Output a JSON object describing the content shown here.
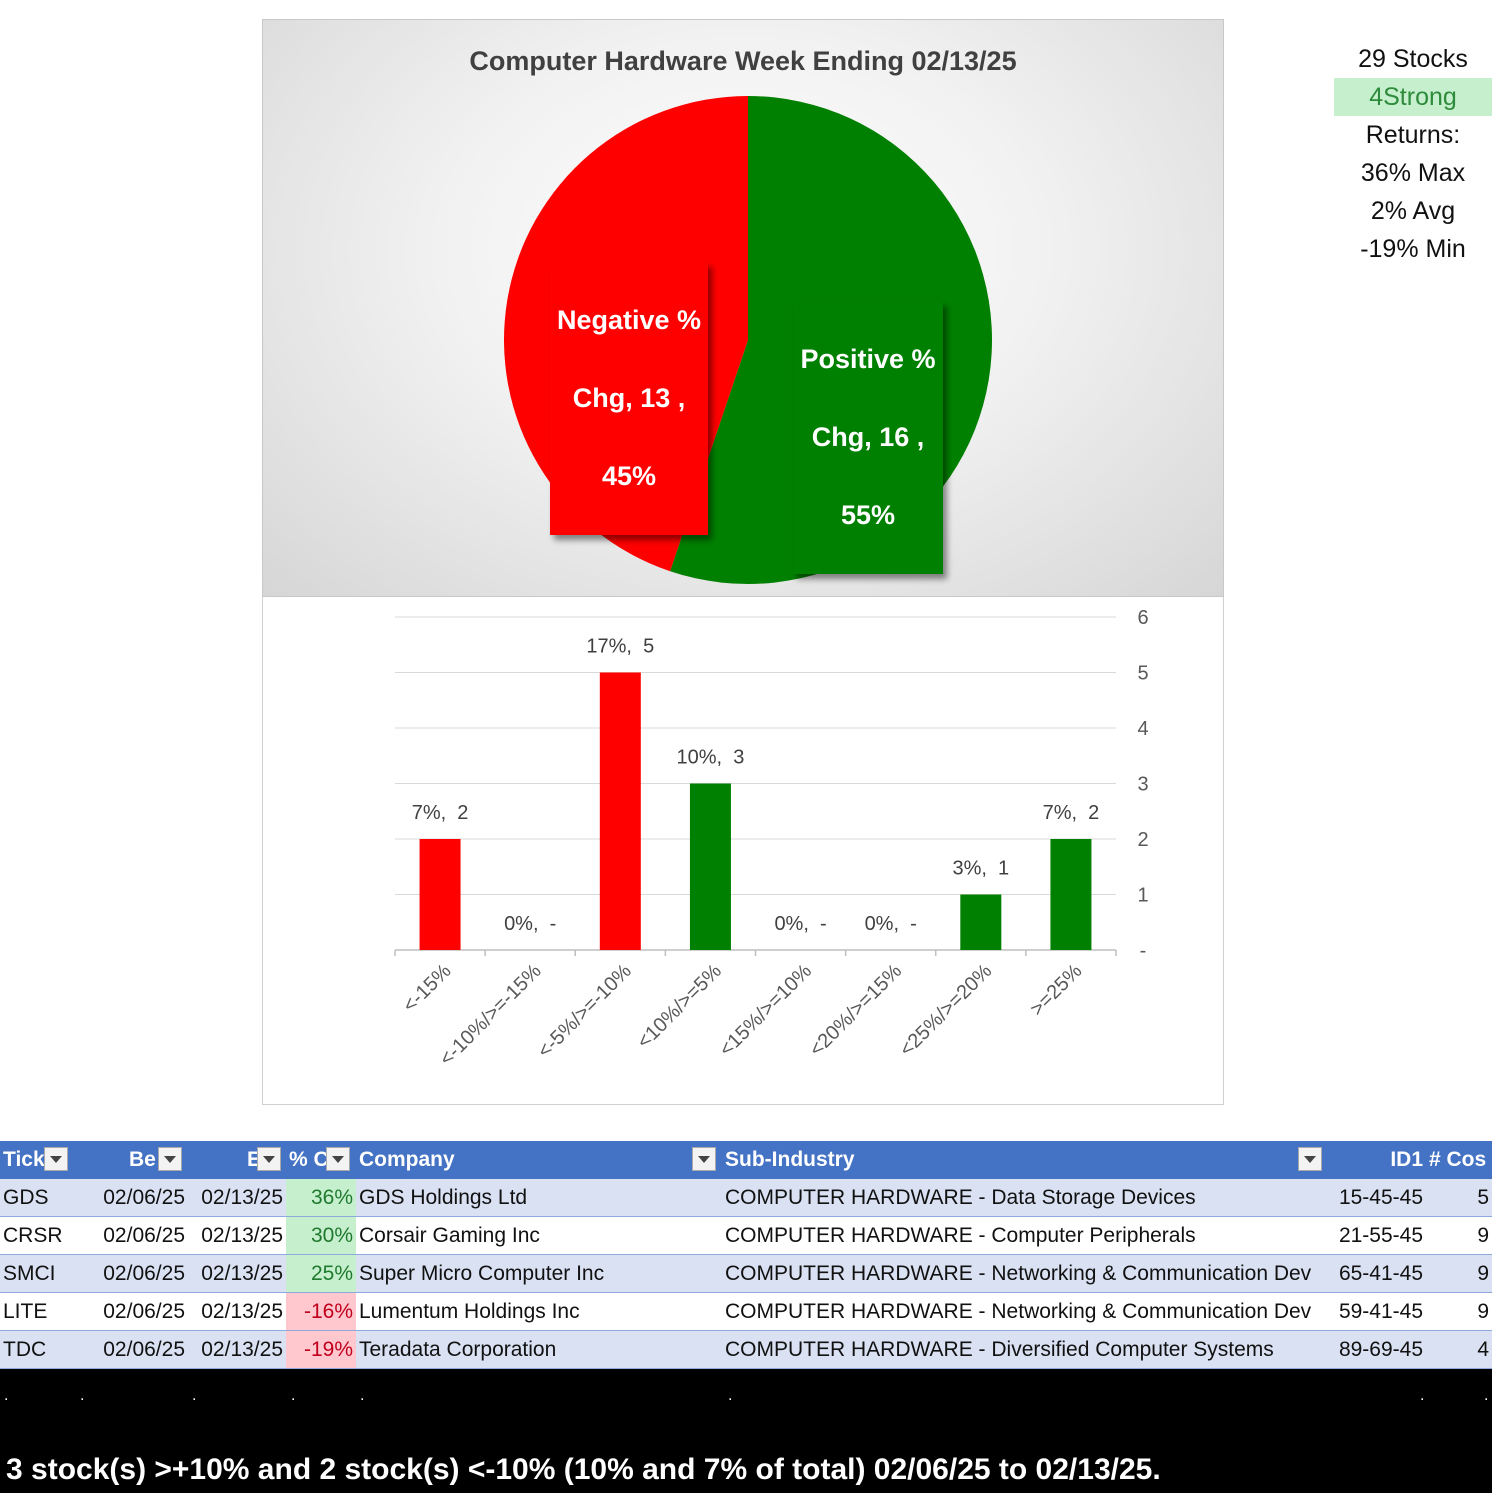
{
  "chart_data": [
    {
      "type": "pie",
      "title": "Computer Hardware Week Ending 02/13/25",
      "slices": [
        {
          "name": "Negative % Chg",
          "value": 13,
          "percent": "45%",
          "color": "#ff0000",
          "label_lines": [
            "Negative %",
            "Chg,  13 ,",
            "45%"
          ]
        },
        {
          "name": "Positive % Chg",
          "value": 16,
          "percent": "55%",
          "color": "#008000",
          "label_lines": [
            "Positive %",
            "Chg,  16 ,",
            "55%"
          ]
        }
      ]
    },
    {
      "type": "bar",
      "categories": [
        "<-15%",
        "<-10%/>=-15%",
        "<-5%/>=-10%",
        "<10%/>=5%",
        "<15%/>=10%",
        "<20%/>=15%",
        "<25%/>=20%",
        ">=25%"
      ],
      "values": [
        2,
        0,
        5,
        3,
        0,
        0,
        1,
        2
      ],
      "data_labels": [
        "7%,  2",
        "0%,  -",
        "17%,  5",
        "10%,  3",
        "0%,  -",
        "0%,  -",
        "3%,  1",
        "7%,  2"
      ],
      "colors": [
        "#ff0000",
        "#ff0000",
        "#ff0000",
        "#008000",
        "#008000",
        "#008000",
        "#008000",
        "#008000"
      ],
      "ylim": [
        0,
        6
      ],
      "yticks": [
        "-",
        "1",
        "2",
        "3",
        "4",
        "5",
        "6"
      ],
      "y_axis_side": "right",
      "grid": true
    }
  ],
  "stats": {
    "stocks": "29 Stocks",
    "strong": "4Strong",
    "returns": "Returns:",
    "max": "36% Max",
    "avg": "2% Avg",
    "min": "-19% Min"
  },
  "table": {
    "headers": [
      "Tick",
      "Be",
      "E",
      "% C",
      "Company",
      "Sub-Industry",
      "ID1",
      "# Cos"
    ],
    "rows": [
      {
        "ticker": "GDS",
        "begin": "02/06/25",
        "end": "02/13/25",
        "chg": "36%",
        "company": "GDS Holdings Ltd",
        "sub": "COMPUTER HARDWARE - Data Storage Devices",
        "id": "15-45-45",
        "cos": "5",
        "sign": "pos"
      },
      {
        "ticker": "CRSR",
        "begin": "02/06/25",
        "end": "02/13/25",
        "chg": "30%",
        "company": "Corsair Gaming Inc",
        "sub": "COMPUTER HARDWARE - Computer Peripherals",
        "id": "21-55-45",
        "cos": "9",
        "sign": "pos"
      },
      {
        "ticker": "SMCI",
        "begin": "02/06/25",
        "end": "02/13/25",
        "chg": "25%",
        "company": "Super Micro Computer Inc",
        "sub": "COMPUTER HARDWARE - Networking & Communication Dev",
        "id": "65-41-45",
        "cos": "9",
        "sign": "pos"
      },
      {
        "ticker": "LITE",
        "begin": "02/06/25",
        "end": "02/13/25",
        "chg": "-16%",
        "company": "Lumentum Holdings Inc",
        "sub": "COMPUTER HARDWARE - Networking & Communication Dev",
        "id": "59-41-45",
        "cos": "9",
        "sign": "neg"
      },
      {
        "ticker": "TDC",
        "begin": "02/06/25",
        "end": "02/13/25",
        "chg": "-19%",
        "company": "Teradata Corporation",
        "sub": "COMPUTER HARDWARE - Diversified Computer Systems",
        "id": "89-69-45",
        "cos": "4",
        "sign": "neg"
      }
    ]
  },
  "footer": {
    "dots": [
      ".",
      ".",
      ".",
      ".",
      ".",
      ".",
      ".",
      "."
    ],
    "summary": "3 stock(s) >+10% and 2 stock(s) <-10% (10% and 7% of total) 02/06/25 to 02/13/25."
  }
}
